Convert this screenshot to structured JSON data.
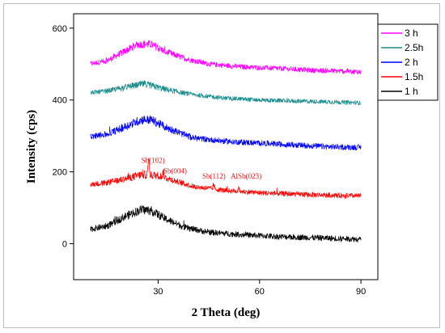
{
  "chart_data": {
    "type": "line",
    "title": "",
    "xlabel": "2 Theta (deg)",
    "ylabel": "Intensity (cps)",
    "xlim": [
      5,
      95
    ],
    "ylim": [
      -100,
      640
    ],
    "xticks": [
      30,
      60,
      90
    ],
    "yticks": [
      0,
      200,
      400,
      600
    ],
    "grid": false,
    "legend_placement": "top-right",
    "series": [
      {
        "name": "3 h",
        "color": "#ff00ff",
        "noise": 7,
        "x": [
          10,
          15,
          20,
          24,
          28,
          32,
          38,
          45,
          55,
          65,
          75,
          85,
          90
        ],
        "y": [
          500,
          510,
          535,
          555,
          555,
          535,
          515,
          500,
          492,
          488,
          483,
          480,
          478
        ]
      },
      {
        "name": "2.5h",
        "color": "#1a8c8c",
        "noise": 6,
        "x": [
          10,
          15,
          20,
          26,
          32,
          40,
          50,
          60,
          70,
          80,
          90
        ],
        "y": [
          420,
          425,
          435,
          445,
          430,
          415,
          405,
          400,
          397,
          395,
          392
        ]
      },
      {
        "name": "2  h",
        "color": "#0000ff",
        "noise": 8,
        "x": [
          10,
          15,
          20,
          25,
          28,
          32,
          40,
          50,
          60,
          70,
          80,
          90
        ],
        "y": [
          298,
          305,
          325,
          345,
          345,
          325,
          295,
          285,
          280,
          275,
          270,
          268
        ]
      },
      {
        "name": "1.5h",
        "color": "#ff0000",
        "noise": 7,
        "x": [
          10,
          15,
          20,
          25,
          30,
          35,
          40,
          50,
          60,
          70,
          80,
          90
        ],
        "y": [
          165,
          170,
          180,
          192,
          190,
          175,
          160,
          148,
          142,
          138,
          135,
          133
        ]
      },
      {
        "name": "1 h",
        "color": "#000000",
        "noise": 8,
        "x": [
          10,
          15,
          20,
          25,
          28,
          32,
          38,
          45,
          55,
          65,
          75,
          85,
          90
        ],
        "y": [
          40,
          50,
          75,
          95,
          92,
          70,
          45,
          32,
          25,
          20,
          17,
          14,
          12
        ]
      }
    ],
    "peaks": [
      {
        "series": "1.5h",
        "x": 27.2,
        "height": 45
      },
      {
        "series": "1.5h",
        "x": 31.5,
        "height": 14
      },
      {
        "series": "1.5h",
        "x": 46.4,
        "height": 12
      },
      {
        "series": "1.5h",
        "x": 53.8,
        "height": 9
      }
    ],
    "annotations": [
      {
        "text": "Sb(102)",
        "x": 28.5,
        "y": 225
      },
      {
        "text": "Sb(004)",
        "x": 35.0,
        "y": 196
      },
      {
        "text": "Sb(112)",
        "x": 46.5,
        "y": 181
      },
      {
        "text": "AlSb(023)",
        "x": 56.0,
        "y": 181
      }
    ]
  }
}
